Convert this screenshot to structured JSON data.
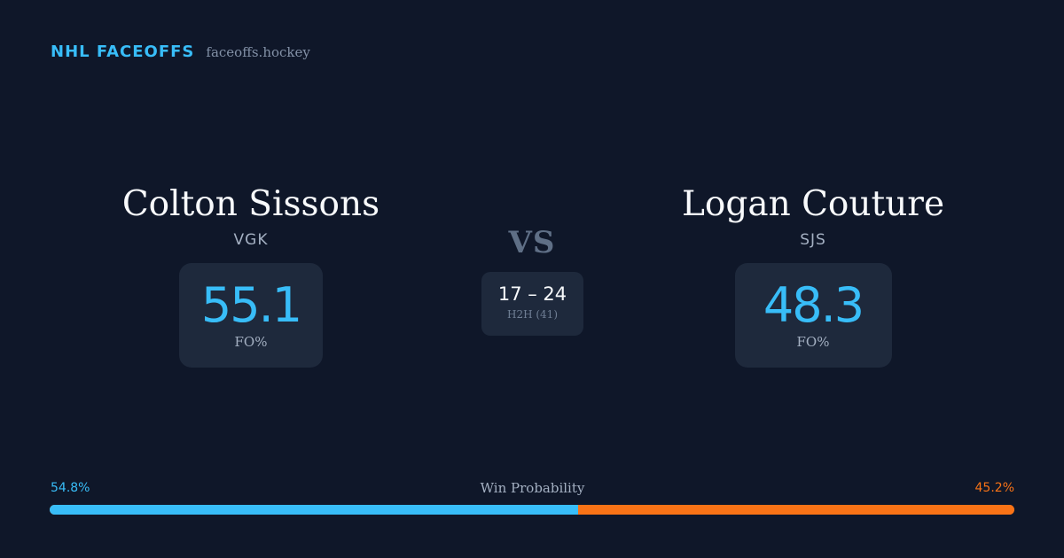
{
  "brand": {
    "name": "NHL FACEOFFS",
    "url": "faceoffs.hockey"
  },
  "player_left": {
    "name": "Colton Sissons",
    "team": "VGK",
    "fo_value": "55.1",
    "fo_label": "FO%"
  },
  "player_right": {
    "name": "Logan Couture",
    "team": "SJS",
    "fo_value": "48.3",
    "fo_label": "FO%"
  },
  "vs_label": "VS",
  "h2h": {
    "score": "17 – 24",
    "label": "H2H (41)"
  },
  "win_probability": {
    "label": "Win Probability",
    "left_text": "54.8%",
    "right_text": "45.2%",
    "left_fraction": 0.548,
    "left_color": "#38bdf8",
    "right_color": "#f97316"
  }
}
